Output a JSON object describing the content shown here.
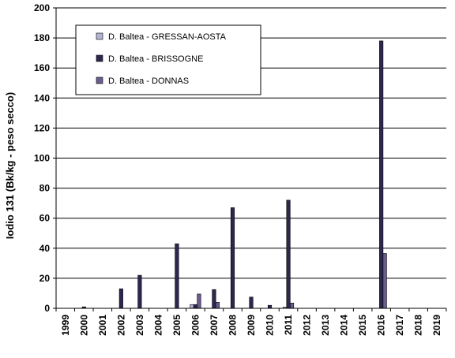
{
  "chart_data": {
    "type": "bar",
    "ylabel": "Iodio 131  (Bk/kg - peso secco)",
    "ylim": [
      0,
      200
    ],
    "yticks": [
      0,
      20,
      40,
      60,
      80,
      100,
      120,
      140,
      160,
      180,
      200
    ],
    "grid": true,
    "legend_position": "top-left",
    "categories": [
      "1999",
      "2000",
      "2001",
      "2002",
      "2003",
      "2004",
      "2005",
      "2006",
      "2007",
      "2008",
      "2009",
      "2010",
      "2011",
      "2012",
      "2013",
      "2014",
      "2015",
      "2016",
      "2017",
      "2018",
      "2019"
    ],
    "series": [
      {
        "name": "D. Baltea - GRESSAN-AOSTA",
        "color": "#b3b3d6",
        "values": [
          0,
          0,
          0,
          0,
          0,
          0,
          0,
          2.5,
          0,
          0,
          0,
          0,
          0.8,
          0,
          0,
          0,
          0,
          0,
          0,
          0,
          0
        ]
      },
      {
        "name": "D. Baltea - BRISSOGNE",
        "color": "#2e2750",
        "values": [
          0,
          1,
          0,
          13,
          22,
          0,
          43,
          2.5,
          12.5,
          67,
          7.5,
          2,
          72,
          0,
          0,
          0,
          0,
          178,
          0,
          0,
          0
        ]
      },
      {
        "name": "D. Baltea - DONNAS",
        "color": "#6b5d8f",
        "values": [
          0,
          0,
          0,
          0,
          0,
          0,
          0,
          9.5,
          4,
          0,
          0,
          0,
          3.5,
          0,
          0,
          0,
          0,
          36.5,
          0,
          0,
          0
        ]
      }
    ]
  }
}
